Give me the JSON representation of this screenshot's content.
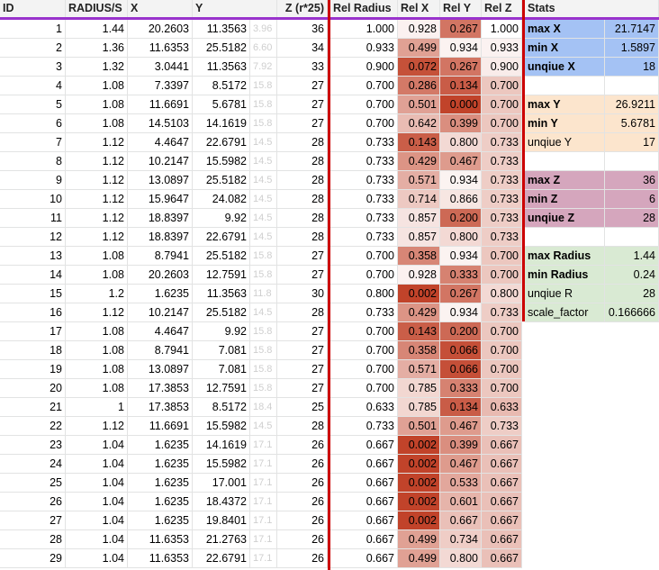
{
  "headers": {
    "id": "ID",
    "radius": "RADIUS/S",
    "x": "X",
    "y": "Y",
    "z": "Z (r*25)",
    "rel_radius": "Rel Radius",
    "rel_x": "Rel X",
    "rel_y": "Rel Y",
    "rel_z": "Rel Z",
    "stats": "Stats"
  },
  "rows": [
    {
      "id": "1",
      "radius": "1.44",
      "x": "20.2603",
      "y": "11.3563",
      "faint": "3.96",
      "z": "36",
      "rr": "1.000",
      "rx": "0.928",
      "ry": "0.267",
      "rz": "1.000",
      "rxv": 0.928,
      "ryv": 0.267,
      "rzv": 1.0
    },
    {
      "id": "2",
      "radius": "1.36",
      "x": "11.6353",
      "y": "25.5182",
      "faint": "6.60",
      "z": "34",
      "rr": "0.933",
      "rx": "0.499",
      "ry": "0.934",
      "rz": "0.933",
      "rxv": 0.499,
      "ryv": 0.934,
      "rzv": 0.933
    },
    {
      "id": "3",
      "radius": "1.32",
      "x": "3.0441",
      "y": "11.3563",
      "faint": "7.92",
      "z": "33",
      "rr": "0.900",
      "rx": "0.072",
      "ry": "0.267",
      "rz": "0.900",
      "rxv": 0.072,
      "ryv": 0.267,
      "rzv": 0.9
    },
    {
      "id": "4",
      "radius": "1.08",
      "x": "7.3397",
      "y": "8.5172",
      "faint": "15.8",
      "z": "27",
      "rr": "0.700",
      "rx": "0.286",
      "ry": "0.134",
      "rz": "0.700",
      "rxv": 0.286,
      "ryv": 0.134,
      "rzv": 0.7
    },
    {
      "id": "5",
      "radius": "1.08",
      "x": "11.6691",
      "y": "5.6781",
      "faint": "15.8",
      "z": "27",
      "rr": "0.700",
      "rx": "0.501",
      "ry": "0.000",
      "rz": "0.700",
      "rxv": 0.501,
      "ryv": 0.0,
      "rzv": 0.7
    },
    {
      "id": "6",
      "radius": "1.08",
      "x": "14.5103",
      "y": "14.1619",
      "faint": "15.8",
      "z": "27",
      "rr": "0.700",
      "rx": "0.642",
      "ry": "0.399",
      "rz": "0.700",
      "rxv": 0.642,
      "ryv": 0.399,
      "rzv": 0.7
    },
    {
      "id": "7",
      "radius": "1.12",
      "x": "4.4647",
      "y": "22.6791",
      "faint": "14.5",
      "z": "28",
      "rr": "0.733",
      "rx": "0.143",
      "ry": "0.800",
      "rz": "0.733",
      "rxv": 0.143,
      "ryv": 0.8,
      "rzv": 0.733
    },
    {
      "id": "8",
      "radius": "1.12",
      "x": "10.2147",
      "y": "15.5982",
      "faint": "14.5",
      "z": "28",
      "rr": "0.733",
      "rx": "0.429",
      "ry": "0.467",
      "rz": "0.733",
      "rxv": 0.429,
      "ryv": 0.467,
      "rzv": 0.733
    },
    {
      "id": "9",
      "radius": "1.12",
      "x": "13.0897",
      "y": "25.5182",
      "faint": "14.5",
      "z": "28",
      "rr": "0.733",
      "rx": "0.571",
      "ry": "0.934",
      "rz": "0.733",
      "rxv": 0.571,
      "ryv": 0.934,
      "rzv": 0.733
    },
    {
      "id": "10",
      "radius": "1.12",
      "x": "15.9647",
      "y": "24.082",
      "faint": "14.5",
      "z": "28",
      "rr": "0.733",
      "rx": "0.714",
      "ry": "0.866",
      "rz": "0.733",
      "rxv": 0.714,
      "ryv": 0.866,
      "rzv": 0.733
    },
    {
      "id": "11",
      "radius": "1.12",
      "x": "18.8397",
      "y": "9.92",
      "faint": "14.5",
      "z": "28",
      "rr": "0.733",
      "rx": "0.857",
      "ry": "0.200",
      "rz": "0.733",
      "rxv": 0.857,
      "ryv": 0.2,
      "rzv": 0.733
    },
    {
      "id": "12",
      "radius": "1.12",
      "x": "18.8397",
      "y": "22.6791",
      "faint": "14.5",
      "z": "28",
      "rr": "0.733",
      "rx": "0.857",
      "ry": "0.800",
      "rz": "0.733",
      "rxv": 0.857,
      "ryv": 0.8,
      "rzv": 0.733
    },
    {
      "id": "13",
      "radius": "1.08",
      "x": "8.7941",
      "y": "25.5182",
      "faint": "15.8",
      "z": "27",
      "rr": "0.700",
      "rx": "0.358",
      "ry": "0.934",
      "rz": "0.700",
      "rxv": 0.358,
      "ryv": 0.934,
      "rzv": 0.7
    },
    {
      "id": "14",
      "radius": "1.08",
      "x": "20.2603",
      "y": "12.7591",
      "faint": "15.8",
      "z": "27",
      "rr": "0.700",
      "rx": "0.928",
      "ry": "0.333",
      "rz": "0.700",
      "rxv": 0.928,
      "ryv": 0.333,
      "rzv": 0.7
    },
    {
      "id": "15",
      "radius": "1.2",
      "x": "1.6235",
      "y": "11.3563",
      "faint": "11.8",
      "z": "30",
      "rr": "0.800",
      "rx": "0.002",
      "ry": "0.267",
      "rz": "0.800",
      "rxv": 0.002,
      "ryv": 0.267,
      "rzv": 0.8
    },
    {
      "id": "16",
      "radius": "1.12",
      "x": "10.2147",
      "y": "25.5182",
      "faint": "14.5",
      "z": "28",
      "rr": "0.733",
      "rx": "0.429",
      "ry": "0.934",
      "rz": "0.733",
      "rxv": 0.429,
      "ryv": 0.934,
      "rzv": 0.733
    },
    {
      "id": "17",
      "radius": "1.08",
      "x": "4.4647",
      "y": "9.92",
      "faint": "15.8",
      "z": "27",
      "rr": "0.700",
      "rx": "0.143",
      "ry": "0.200",
      "rz": "0.700",
      "rxv": 0.143,
      "ryv": 0.2,
      "rzv": 0.7
    },
    {
      "id": "18",
      "radius": "1.08",
      "x": "8.7941",
      "y": "7.081",
      "faint": "15.8",
      "z": "27",
      "rr": "0.700",
      "rx": "0.358",
      "ry": "0.066",
      "rz": "0.700",
      "rxv": 0.358,
      "ryv": 0.066,
      "rzv": 0.7
    },
    {
      "id": "19",
      "radius": "1.08",
      "x": "13.0897",
      "y": "7.081",
      "faint": "15.8",
      "z": "27",
      "rr": "0.700",
      "rx": "0.571",
      "ry": "0.066",
      "rz": "0.700",
      "rxv": 0.571,
      "ryv": 0.066,
      "rzv": 0.7
    },
    {
      "id": "20",
      "radius": "1.08",
      "x": "17.3853",
      "y": "12.7591",
      "faint": "15.8",
      "z": "27",
      "rr": "0.700",
      "rx": "0.785",
      "ry": "0.333",
      "rz": "0.700",
      "rxv": 0.785,
      "ryv": 0.333,
      "rzv": 0.7
    },
    {
      "id": "21",
      "radius": "1",
      "x": "17.3853",
      "y": "8.5172",
      "faint": "18.4",
      "z": "25",
      "rr": "0.633",
      "rx": "0.785",
      "ry": "0.134",
      "rz": "0.633",
      "rxv": 0.785,
      "ryv": 0.134,
      "rzv": 0.633
    },
    {
      "id": "22",
      "radius": "1.12",
      "x": "11.6691",
      "y": "15.5982",
      "faint": "14.5",
      "z": "28",
      "rr": "0.733",
      "rx": "0.501",
      "ry": "0.467",
      "rz": "0.733",
      "rxv": 0.501,
      "ryv": 0.467,
      "rzv": 0.733
    },
    {
      "id": "23",
      "radius": "1.04",
      "x": "1.6235",
      "y": "14.1619",
      "faint": "17.1",
      "z": "26",
      "rr": "0.667",
      "rx": "0.002",
      "ry": "0.399",
      "rz": "0.667",
      "rxv": 0.002,
      "ryv": 0.399,
      "rzv": 0.667
    },
    {
      "id": "24",
      "radius": "1.04",
      "x": "1.6235",
      "y": "15.5982",
      "faint": "17.1",
      "z": "26",
      "rr": "0.667",
      "rx": "0.002",
      "ry": "0.467",
      "rz": "0.667",
      "rxv": 0.002,
      "ryv": 0.467,
      "rzv": 0.667
    },
    {
      "id": "25",
      "radius": "1.04",
      "x": "1.6235",
      "y": "17.001",
      "faint": "17.1",
      "z": "26",
      "rr": "0.667",
      "rx": "0.002",
      "ry": "0.533",
      "rz": "0.667",
      "rxv": 0.002,
      "ryv": 0.533,
      "rzv": 0.667
    },
    {
      "id": "26",
      "radius": "1.04",
      "x": "1.6235",
      "y": "18.4372",
      "faint": "17.1",
      "z": "26",
      "rr": "0.667",
      "rx": "0.002",
      "ry": "0.601",
      "rz": "0.667",
      "rxv": 0.002,
      "ryv": 0.601,
      "rzv": 0.667
    },
    {
      "id": "27",
      "radius": "1.04",
      "x": "1.6235",
      "y": "19.8401",
      "faint": "17.1",
      "z": "26",
      "rr": "0.667",
      "rx": "0.002",
      "ry": "0.667",
      "rz": "0.667",
      "rxv": 0.002,
      "ryv": 0.667,
      "rzv": 0.667
    },
    {
      "id": "28",
      "radius": "1.04",
      "x": "11.6353",
      "y": "21.2763",
      "faint": "17.1",
      "z": "26",
      "rr": "0.667",
      "rx": "0.499",
      "ry": "0.734",
      "rz": "0.667",
      "rxv": 0.499,
      "ryv": 0.734,
      "rzv": 0.667
    },
    {
      "id": "29",
      "radius": "1.04",
      "x": "11.6353",
      "y": "22.6791",
      "faint": "17.1",
      "z": "26",
      "rr": "0.667",
      "rx": "0.499",
      "ry": "0.800",
      "rz": "0.667",
      "rxv": 0.499,
      "ryv": 0.8,
      "rzv": 0.667
    }
  ],
  "stats": [
    {
      "label": "max X",
      "value": "21.7147",
      "group": "x",
      "bold": true
    },
    {
      "label": "min X",
      "value": "1.5897",
      "group": "x",
      "bold": true
    },
    {
      "label": "unqiue X",
      "value": "18",
      "group": "x",
      "bold": true
    },
    {
      "label": "",
      "value": "",
      "group": "none",
      "bold": false
    },
    {
      "label": "max Y",
      "value": "26.9211",
      "group": "y",
      "bold": true
    },
    {
      "label": "min Y",
      "value": "5.6781",
      "group": "y",
      "bold": true
    },
    {
      "label": "unqiue Y",
      "value": "17",
      "group": "y",
      "bold": false
    },
    {
      "label": "",
      "value": "",
      "group": "none",
      "bold": false
    },
    {
      "label": "max Z",
      "value": "36",
      "group": "z",
      "bold": true
    },
    {
      "label": "min Z",
      "value": "6",
      "group": "z",
      "bold": true
    },
    {
      "label": "unqiue Z",
      "value": "28",
      "group": "z",
      "bold": true
    },
    {
      "label": "",
      "value": "",
      "group": "none",
      "bold": false
    },
    {
      "label": "max Radius",
      "value": "1.44",
      "group": "r",
      "bold": true
    },
    {
      "label": "min Radius",
      "value": "0.24",
      "group": "r",
      "bold": true
    },
    {
      "label": "unqiue R",
      "value": "28",
      "group": "r",
      "bold": false
    },
    {
      "label": "scale_factor",
      "value": "0.166666",
      "group": "r",
      "bold": false
    }
  ],
  "colors": {
    "header_bg": "#f3f3f3",
    "header_underline": "#9933cc",
    "separator_red": "#cc0000",
    "heat_low": "#c1432a",
    "heat_high": "#ffffff",
    "stat_x": "#a4c2f4",
    "stat_y": "#fce5cd",
    "stat_z": "#d5a6bd",
    "stat_r": "#d9ead3"
  }
}
